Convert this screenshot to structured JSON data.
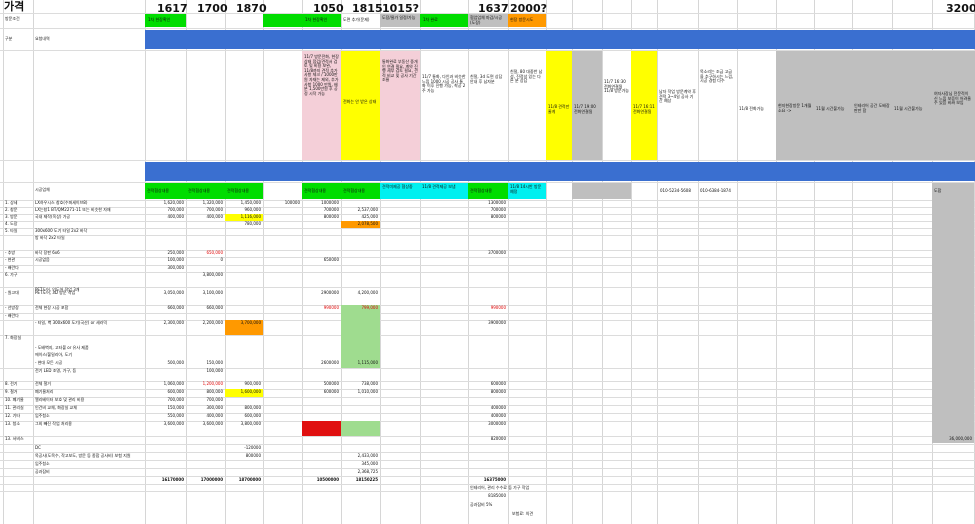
{
  "title": "가격",
  "header_numbers": [
    "1617",
    "1700",
    "1870",
    "1050",
    "1815",
    "1015?",
    "1637",
    "2000?",
    "3200"
  ],
  "row_labels": {
    "r1": "방문조건",
    "r2": "구분",
    "r3": "1. 상세",
    "r_main": [
      "1. 상세",
      "2. 창문",
      "3. 방문",
      "4. 도장",
      "5. 타일",
      "",
      "- 추방",
      "- 현관",
      "- 배란다",
      "6. 가구",
      "",
      "- 원고대",
      "- 선방장",
      "- 배란다",
      "",
      "7. 화장실",
      "",
      "",
      "",
      "",
      "8. 전기",
      "9. 철거",
      "10. 폐기물",
      "11. 관리실",
      "12. 기타",
      "13. 청소",
      "13. 서비스"
    ],
    "sub_2": "요청내역",
    "sub_col": "시공업체"
  },
  "row1_cells": {
    "c1": "1차 현장확인",
    "c2": "1차 현장확인",
    "c3": "도면 추가(문제)",
    "c4": "도장/물가 일정/가능",
    "c5": "1차 완료",
    "c6": "협업업체 마감/시공(도장)",
    "c7": "현장 방문시도"
  },
  "notes": {
    "pink1": "11/7 방문전화, 현장 상태 점검/견적서 검토 및 비용 보완, 11/8까지 견적 추가 사항 체크 / 1000만원 자재는 제외, 추가 사항 1000 만원, 배분 1,500만원 후 공정 시작 가능",
    "yellow1": "전화는 안 받은 상태",
    "pink2": "통화완료 부동산 중개인 연결 필요, 계약 진행 세부 검토 필요, 견적 비교 및 공사 기간 조율",
    "white1": "11/7 통화, 다인과 비슷한 느낌 1000 시공 공사 통화 이후 진행 가능, 착공 2주 가능",
    "white2": "친절, 3d 도면 상담 안내 후 남자분",
    "white3": "친절, 80 대중반 남성, 진정성 있는 다른 분 상담",
    "yellow2": "11/8 견적만 줄게",
    "white4": "11/7 19:00 전화연결됨",
    "white5": "11/7 16:30 전화연결됨 11/8 방문가능",
    "yellow3": "11/7 16:11 전화연결됨",
    "white6": "남자 작업 방문계약 후 견적 3~4일 공사 기간 예상",
    "white7": "목소리는 조금 고급을 추구하시는 느낌, 시공 경험 다수",
    "white8": "11/8 전화가능",
    "grey1": "현지현장방문 1개월 소요 ->",
    "grey2": "11월 시간불가능",
    "grey3": "인테리어 공간 도배장판만 함",
    "grey4": "11월 시간불가능",
    "grey5": "여자사장님 전문적이신 느낌 보증이 어려울 수 있음 비싸 보임"
  },
  "contacts": {
    "phone1": "010-5234-5608",
    "phone2": "010-6384-1874"
  },
  "company_tags": [
    "견적협상내용",
    "견적협상내용",
    "견적협상내용",
    "견적협상내용",
    "견적협상내용",
    "견적미제공 협상중",
    "11/8 견적제공 보냄",
    "견적협상내용",
    "11/8 14시반 방문예정"
  ],
  "desc_col": [
    "LX하우시스 창호(수퍼세이브8)",
    "LX는창1 BT/QM2271-11 또는 비슷한 자재",
    "국내 제작(옥상) 가공",
    "",
    "300x600 도기 타일 2x2 바닥",
    "방 바닥 2x2 타일",
    "바닥 장판 6x6",
    "시공없음",
    "",
    "",
    "PET도어, 인도어 작업 3개",
    "PET도어, 3D 방문 작업",
    "전체 현장 시공 포함",
    "",
    "- 타일, 벽 300x600 도기(국산) or 세라믹",
    "",
    "- 도배벽지, 고타볼 or 유사 제품",
    "에이스/불밀리아, 도기",
    "- 현대 모든 시공",
    "전기 LED 조명, 가구, 등",
    "전체 철거",
    "폐기물처리",
    "엘리베이터 보호 및 관리 비용",
    "인건비 교체, 화장실 교체",
    "입주청소",
    "그외 빼진 작업 처리용"
  ],
  "col_a": [
    "1,620,000",
    "700,000",
    "400,000",
    "",
    "",
    "",
    "250,000",
    "100,000",
    "300,000",
    "",
    "",
    "3,050,000",
    "660,000",
    "",
    "2,300,000",
    "",
    "",
    "",
    "500,000",
    "",
    "1,060,000",
    "600,000",
    "700,000",
    "150,000",
    "550,000",
    "3,600,000"
  ],
  "col_b": [
    "1,320,000",
    "700,000",
    "400,000",
    "",
    "",
    "",
    "650,000",
    "0",
    "",
    "3,800,000",
    "",
    "3,100,000",
    "660,000",
    "",
    "2,200,000",
    "",
    "",
    "",
    "150,000",
    "100,000",
    "1,200,000",
    "800,000",
    "700,000",
    "300,000",
    "400,000",
    "3,600,000"
  ],
  "col_c": [
    "1,450,000",
    "960,000",
    "1,116,000",
    "780,000",
    "",
    "",
    "",
    "",
    "",
    "",
    "",
    "",
    "",
    "",
    "3,700,000",
    "",
    "",
    "",
    "",
    "",
    "900,000",
    "1,600,000",
    "",
    "800,000",
    "600,000",
    "3,800,000"
  ],
  "col_d": [
    "100000",
    "",
    "",
    "",
    "",
    "",
    "",
    "",
    "",
    "",
    "",
    "",
    "",
    "",
    "",
    "",
    "",
    "",
    "",
    "",
    "",
    "",
    "",
    "",
    "",
    ""
  ],
  "col_e": [
    "1000000",
    "700000",
    "800000",
    "",
    "",
    "",
    "",
    "650000",
    "",
    "",
    "",
    "2900000",
    "990000",
    "",
    "",
    "",
    "",
    "",
    "2600000",
    "",
    "500000",
    "600000",
    "",
    "",
    "",
    ""
  ],
  "col_f": [
    "",
    "2,537,000",
    "425,000",
    "2,078,500",
    "",
    "",
    "",
    "",
    "",
    "",
    "",
    "4,200,000",
    "799,000",
    "",
    "",
    "",
    "",
    "",
    "1,115,000",
    "",
    "738,000",
    "1,010,000",
    "",
    "",
    "",
    ""
  ],
  "col_g": [
    "1300000",
    "700000",
    "800000",
    "",
    "",
    "",
    "3700000",
    "",
    "",
    "",
    "",
    "",
    "990000",
    "",
    "3900000",
    "",
    "",
    "",
    "",
    "",
    "600000",
    "800000",
    "",
    "400000",
    "400000",
    "3000000"
  ],
  "bottom": {
    "dc_label": "DC",
    "dc_val": "-120000",
    "extra_label": "목공사(도목수, 작고보도, 방문 등 종합 공사비) 보험 지원",
    "extra_val": "800000",
    "extra_f": "2,433,000",
    "inj_label": "입주청소",
    "inj_f": "345,000",
    "acc_label": "공과잡비",
    "acc_f": "2,368,725",
    "totals": [
      "16170000",
      "17000000",
      "18700000",
      "10500000",
      "18150225",
      "16375000"
    ],
    "service_g": "820000",
    "right_total": "36,000,000",
    "note1": "인테리어, 관리 수수료 등 가구 작업",
    "note2": "8185000",
    "note3": "공과잡비 5%",
    "note4": "보험료: 의견"
  },
  "colors": {
    "green": "#00dd00",
    "yellow": "#ffff00",
    "pink": "#f4cfd8",
    "blue": "#3a6fd0",
    "cyan": "#00f0f0",
    "orange": "#ff9900",
    "grey": "#bfbfbf",
    "lightgreen": "#9fdc8f",
    "red": "#e01010"
  }
}
